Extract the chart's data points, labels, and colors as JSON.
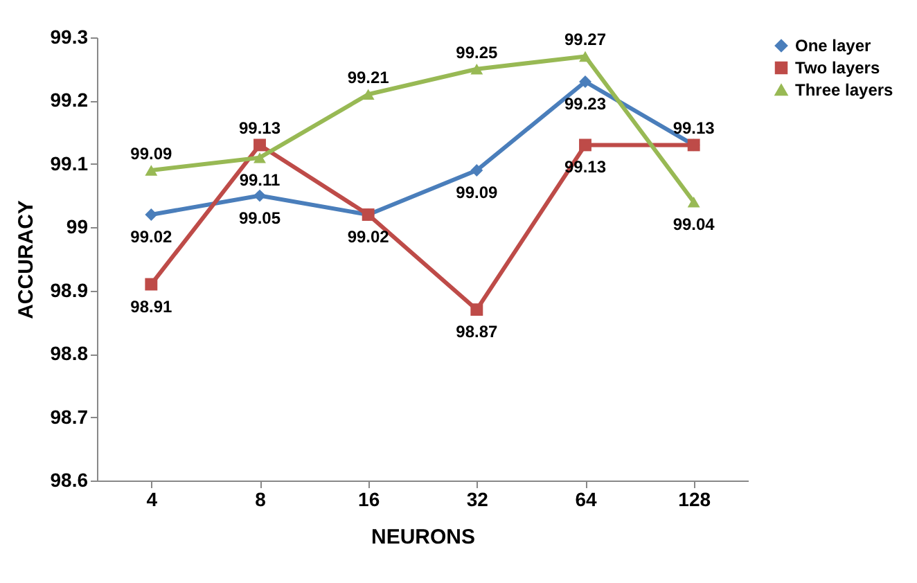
{
  "chart_data": {
    "type": "line",
    "xlabel": "NEURONS",
    "ylabel": "ACCURACY",
    "categories": [
      "4",
      "8",
      "16",
      "32",
      "64",
      "128"
    ],
    "series": [
      {
        "name": "One layer",
        "color": "#4a7ebb",
        "marker": "diamond",
        "values": [
          99.02,
          99.05,
          99.02,
          99.09,
          99.23,
          99.13
        ],
        "value_labels": [
          "99.02",
          "99.05",
          "99.02",
          "99.09",
          "99.23",
          null
        ]
      },
      {
        "name": "Two layers",
        "color": "#be4b48",
        "marker": "square",
        "values": [
          98.91,
          99.13,
          99.02,
          98.87,
          99.13,
          99.13
        ],
        "value_labels": [
          "98.91",
          "99.13",
          null,
          "98.87",
          "99.13",
          "99.13"
        ]
      },
      {
        "name": "Three layers",
        "color": "#98b954",
        "marker": "triangle",
        "values": [
          99.09,
          99.11,
          99.21,
          99.25,
          99.27,
          99.04
        ],
        "value_labels": [
          "99.09",
          "99.11",
          "99.21",
          "99.25",
          "99.27",
          "99.04"
        ]
      }
    ],
    "ylim": [
      98.6,
      99.3
    ],
    "yticks": [
      98.6,
      98.7,
      98.8,
      98.9,
      99,
      99.1,
      99.2,
      99.3
    ],
    "grid": false,
    "legend": "right"
  }
}
